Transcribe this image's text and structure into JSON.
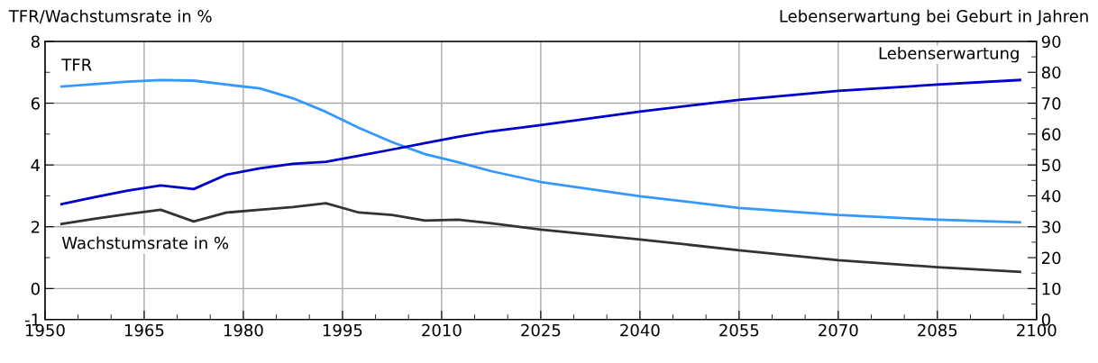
{
  "chart_data": {
    "type": "line",
    "ylabel": "TFR/Wachstumsrate in %",
    "y2label": "Lebenserwartung bei Geburt in Jahren",
    "x": [
      1952.5,
      1957.5,
      1962.5,
      1967.5,
      1972.5,
      1977.5,
      1982.5,
      1987.5,
      1992.5,
      1997.5,
      2002.5,
      2007.5,
      2012.5,
      2017.5,
      2025,
      2040,
      2055,
      2070,
      2085,
      2097.5
    ],
    "series": [
      {
        "name": "TFR",
        "color": "#3399ff",
        "values": [
          6.54,
          6.62,
          6.7,
          6.75,
          6.73,
          6.6,
          6.48,
          6.16,
          5.72,
          5.2,
          4.74,
          4.35,
          4.09,
          3.8,
          3.45,
          2.99,
          2.61,
          2.38,
          2.23,
          2.14
        ]
      },
      {
        "name": "Lebenserwartung",
        "color": "#0000cc",
        "axis": "y2",
        "values": [
          37.3,
          39.6,
          41.7,
          43.4,
          42.2,
          46.9,
          48.9,
          50.4,
          51.0,
          53.0,
          55.0,
          57.1,
          59.1,
          60.9,
          62.9,
          67.3,
          71.1,
          74.0,
          76.0,
          77.5
        ]
      },
      {
        "name": "Wachstumsrate in %",
        "color": "#333333",
        "values": [
          2.09,
          2.26,
          2.41,
          2.55,
          2.17,
          2.46,
          2.55,
          2.64,
          2.76,
          2.46,
          2.38,
          2.2,
          2.23,
          2.11,
          1.91,
          1.59,
          1.24,
          0.92,
          0.69,
          0.54
        ]
      }
    ],
    "xlim": [
      1950,
      2100
    ],
    "xticks": [
      1950,
      {
        "value": 1955,
        "label": null
      },
      {
        "value": 1960,
        "label": null
      },
      1965,
      {
        "value": 1970,
        "label": null
      },
      {
        "value": 1975,
        "label": null
      },
      1980,
      {
        "value": 1985,
        "label": null
      },
      {
        "value": 1990,
        "label": null
      },
      1995,
      {
        "value": 2000,
        "label": null
      },
      {
        "value": 2005,
        "label": null
      },
      2010,
      {
        "value": 2015,
        "label": null
      },
      {
        "value": 2020,
        "label": null
      },
      2025,
      {
        "value": 2030,
        "label": null
      },
      {
        "value": 2035,
        "label": null
      },
      2040,
      {
        "value": 2045,
        "label": null
      },
      {
        "value": 2050,
        "label": null
      },
      2055,
      {
        "value": 2060,
        "label": null
      },
      {
        "value": 2065,
        "label": null
      },
      2070,
      {
        "value": 2075,
        "label": null
      },
      {
        "value": 2080,
        "label": null
      },
      2085,
      {
        "value": 2090,
        "label": null
      },
      {
        "value": 2095,
        "label": null
      },
      2100
    ],
    "ylim": [
      -1,
      8
    ],
    "yticks": [
      -1,
      0,
      {
        "value": 1,
        "label": null
      },
      2,
      {
        "value": 3,
        "label": null
      },
      4,
      {
        "value": 5,
        "label": null
      },
      6,
      {
        "value": 7,
        "label": null
      },
      8
    ],
    "y2lim": [
      0,
      90
    ],
    "y2ticks": [
      0,
      {
        "value": 5,
        "label": null
      },
      10,
      {
        "value": 15,
        "label": null
      },
      20,
      {
        "value": 25,
        "label": null
      },
      30,
      {
        "value": 35,
        "label": null
      },
      40,
      {
        "value": 45,
        "label": null
      },
      50,
      {
        "value": 55,
        "label": null
      },
      60,
      {
        "value": 65,
        "label": null
      },
      70,
      {
        "value": 75,
        "label": null
      },
      80,
      {
        "value": 85,
        "label": null
      },
      90
    ],
    "grid": true,
    "legend": false,
    "marker": "none",
    "line_style": "solid"
  }
}
